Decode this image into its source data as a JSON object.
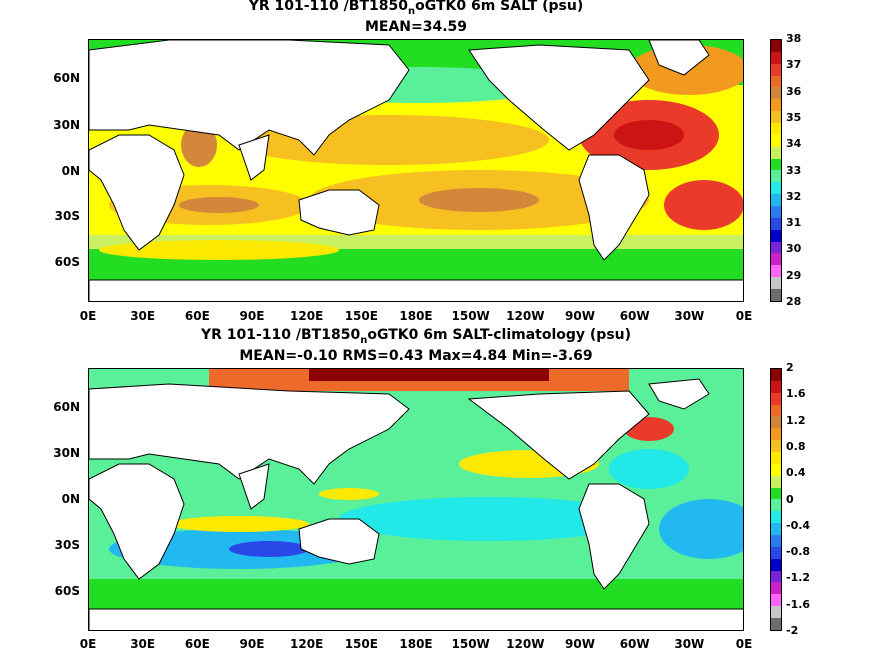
{
  "top": {
    "title_pre": "YR 101-110 /BT1850",
    "title_sub": "n",
    "title_post": "oGTK0 6m SALT (psu)",
    "stats": "MEAN=34.59",
    "colorbar_labels": [
      "38",
      "37",
      "36",
      "35",
      "34",
      "33",
      "32",
      "31",
      "30",
      "29",
      "28"
    ],
    "colorbar_colors": [
      "#8b0000",
      "#cc1414",
      "#ea3a2a",
      "#ee6a2a",
      "#d2873a",
      "#f29a20",
      "#f6c020",
      "#fbe900",
      "#ffff00",
      "#c8f060",
      "#22dd22",
      "#5af09a",
      "#22e8e8",
      "#22b8f0",
      "#2c7cf0",
      "#2848e8",
      "#0000cc",
      "#7a22d8",
      "#cc22cc",
      "#ff66ff",
      "#c8c8c8",
      "#6e6e6e"
    ]
  },
  "bottom": {
    "title_pre": "YR 101-110 /BT1850",
    "title_sub": "n",
    "title_post": "oGTK0 6m SALT-climatology (psu)",
    "stats": "MEAN=-0.10   RMS=0.43   Max=4.84   Min=-3.69",
    "colorbar_labels": [
      "2",
      "1.6",
      "1.2",
      "0.8",
      "0.4",
      "0",
      "-0.4",
      "-0.8",
      "-1.2",
      "-1.6",
      "-2"
    ],
    "colorbar_colors": [
      "#8b0000",
      "#cc1414",
      "#ea3a2a",
      "#ee6a2a",
      "#d2873a",
      "#f29a20",
      "#f6c020",
      "#fbe900",
      "#ffff00",
      "#c8f060",
      "#22dd22",
      "#5af09a",
      "#22e8e8",
      "#22b8f0",
      "#2c7cf0",
      "#2848e8",
      "#0000cc",
      "#7a22d8",
      "#cc22cc",
      "#ff66ff",
      "#c8c8c8",
      "#6e6e6e"
    ]
  },
  "axes": {
    "lat_labels": [
      "60N",
      "30N",
      "0N",
      "30S",
      "60S"
    ],
    "lon_labels": [
      "0E",
      "30E",
      "60E",
      "90E",
      "120E",
      "150E",
      "180E",
      "150W",
      "120W",
      "90W",
      "60W",
      "30W",
      "0E"
    ]
  },
  "colors": {
    "land": "#ffffff",
    "coast": "#000000"
  }
}
